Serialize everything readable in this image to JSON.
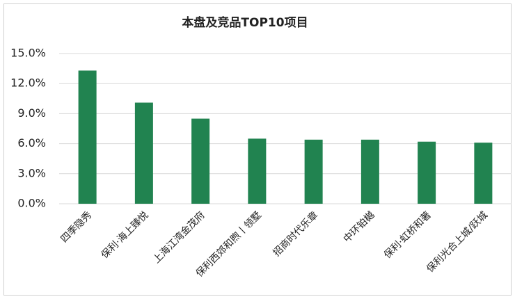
{
  "chart_data": {
    "type": "bar",
    "title": "本盘及竞品TOP10项目",
    "categories": [
      "四季隐秀",
      "保利·海上臻悦",
      "上海江湾金茂府",
      "保利西郊和煦丨领墅",
      "招商时代乐章",
      "中环铂樾",
      "保利·虹桥和著",
      "保利光合上城/跃城"
    ],
    "values": [
      13.3,
      10.1,
      8.5,
      6.5,
      6.4,
      6.4,
      6.2,
      6.1
    ],
    "color": "#218350",
    "ylim": [
      0,
      15
    ],
    "yticks": [
      {
        "value": 0,
        "label": "0.0%"
      },
      {
        "value": 3,
        "label": "3.0%"
      },
      {
        "value": 6,
        "label": "6.0%"
      },
      {
        "value": 9,
        "label": "9.0%"
      },
      {
        "value": 12,
        "label": "12.0%"
      },
      {
        "value": 15,
        "label": "15.0%"
      }
    ],
    "grid": true
  }
}
